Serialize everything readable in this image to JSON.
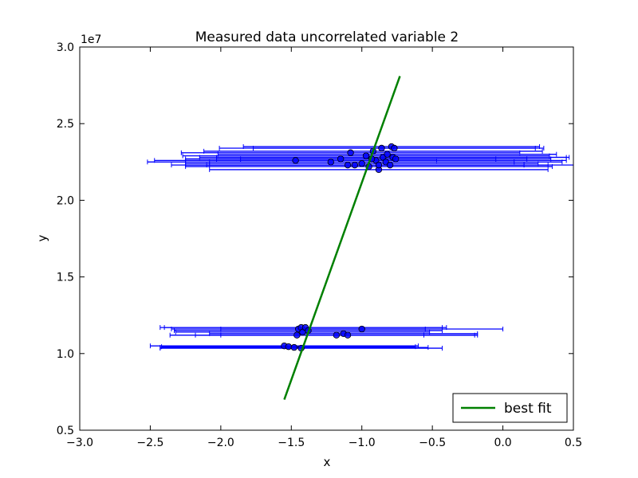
{
  "chart_data": {
    "type": "scatter",
    "title": "Measured data uncorrelated variable 2",
    "xlabel": "x",
    "ylabel": "y",
    "xlim": [
      -3.0,
      0.5
    ],
    "ylim": [
      5000000,
      30000000
    ],
    "y_offset_label": "1e7",
    "x_ticks": [
      -3.0,
      -2.5,
      -2.0,
      -1.5,
      -1.0,
      -0.5,
      0.0,
      0.5
    ],
    "x_tick_labels": [
      "−3.0",
      "−2.5",
      "−2.0",
      "−1.5",
      "−1.0",
      "−0.5",
      "0.0",
      "0.5"
    ],
    "y_ticks": [
      5000000,
      10000000,
      15000000,
      20000000,
      25000000,
      30000000
    ],
    "y_tick_labels": [
      "0.5",
      "1.0",
      "1.5",
      "2.0",
      "2.5",
      "3.0"
    ],
    "grid": false,
    "legend_position": "lower-right",
    "colors": {
      "points": "#0000ff",
      "point_edge": "#000000",
      "errorbars": "#0000ff",
      "fit": "#008000"
    },
    "series": [
      {
        "kind": "errorbar-scatter",
        "points": [
          {
            "x": -1.47,
            "y": 22600000,
            "xerr": 1.0
          },
          {
            "x": -1.22,
            "y": 22500000,
            "xerr": 1.3
          },
          {
            "x": -1.15,
            "y": 22700000,
            "xerr": 1.1
          },
          {
            "x": -1.08,
            "y": 23100000,
            "xerr": 1.2
          },
          {
            "x": -1.05,
            "y": 22300000,
            "xerr": 1.2
          },
          {
            "x": -1.0,
            "y": 22400000,
            "xerr": 1.25
          },
          {
            "x": -0.97,
            "y": 22900000,
            "xerr": 1.3
          },
          {
            "x": -0.95,
            "y": 22200000,
            "xerr": 1.3
          },
          {
            "x": -0.92,
            "y": 23200000,
            "xerr": 1.2
          },
          {
            "x": -0.9,
            "y": 22600000,
            "xerr": 1.35
          },
          {
            "x": -0.88,
            "y": 22000000,
            "xerr": 1.2
          },
          {
            "x": -0.86,
            "y": 23400000,
            "xerr": 1.15
          },
          {
            "x": -0.85,
            "y": 22800000,
            "xerr": 1.3
          },
          {
            "x": -0.83,
            "y": 22500000,
            "xerr": 1.25
          },
          {
            "x": -0.82,
            "y": 23000000,
            "xerr": 1.2
          },
          {
            "x": -0.8,
            "y": 22300000,
            "xerr": 1.3
          },
          {
            "x": -0.79,
            "y": 23500000,
            "xerr": 1.05
          },
          {
            "x": -0.78,
            "y": 22800000,
            "xerr": 1.25
          },
          {
            "x": -0.77,
            "y": 23400000,
            "xerr": 1.0
          },
          {
            "x": -0.76,
            "y": 22700000,
            "xerr": 1.1
          },
          {
            "x": -0.88,
            "y": 22300000,
            "xerr": 1.2
          },
          {
            "x": -0.93,
            "y": 22700000,
            "xerr": 1.1
          },
          {
            "x": -1.1,
            "y": 22300000,
            "xerr": 1.25
          },
          {
            "x": -1.45,
            "y": 11600000,
            "xerr": 0.9
          },
          {
            "x": -1.43,
            "y": 11700000,
            "xerr": 1.0
          },
          {
            "x": -1.42,
            "y": 11400000,
            "xerr": 0.9
          },
          {
            "x": -1.4,
            "y": 11700000,
            "xerr": 1.0
          },
          {
            "x": -1.38,
            "y": 11500000,
            "xerr": 0.95
          },
          {
            "x": -1.46,
            "y": 11200000,
            "xerr": 0.9
          },
          {
            "x": -1.18,
            "y": 11200000,
            "xerr": 1.0
          },
          {
            "x": -1.13,
            "y": 11300000,
            "xerr": 0.95
          },
          {
            "x": -1.1,
            "y": 11200000,
            "xerr": 0.9
          },
          {
            "x": -1.0,
            "y": 11600000,
            "xerr": 1.0
          },
          {
            "x": -1.55,
            "y": 10500000,
            "xerr": 0.95
          },
          {
            "x": -1.52,
            "y": 10450000,
            "xerr": 0.9
          },
          {
            "x": -1.48,
            "y": 10400000,
            "xerr": 0.95
          },
          {
            "x": -1.43,
            "y": 10350000,
            "xerr": 1.0
          }
        ]
      },
      {
        "name": "best fit",
        "kind": "line",
        "x": [
          -1.55,
          -0.73
        ],
        "y": [
          7000000,
          28100000
        ]
      }
    ]
  }
}
